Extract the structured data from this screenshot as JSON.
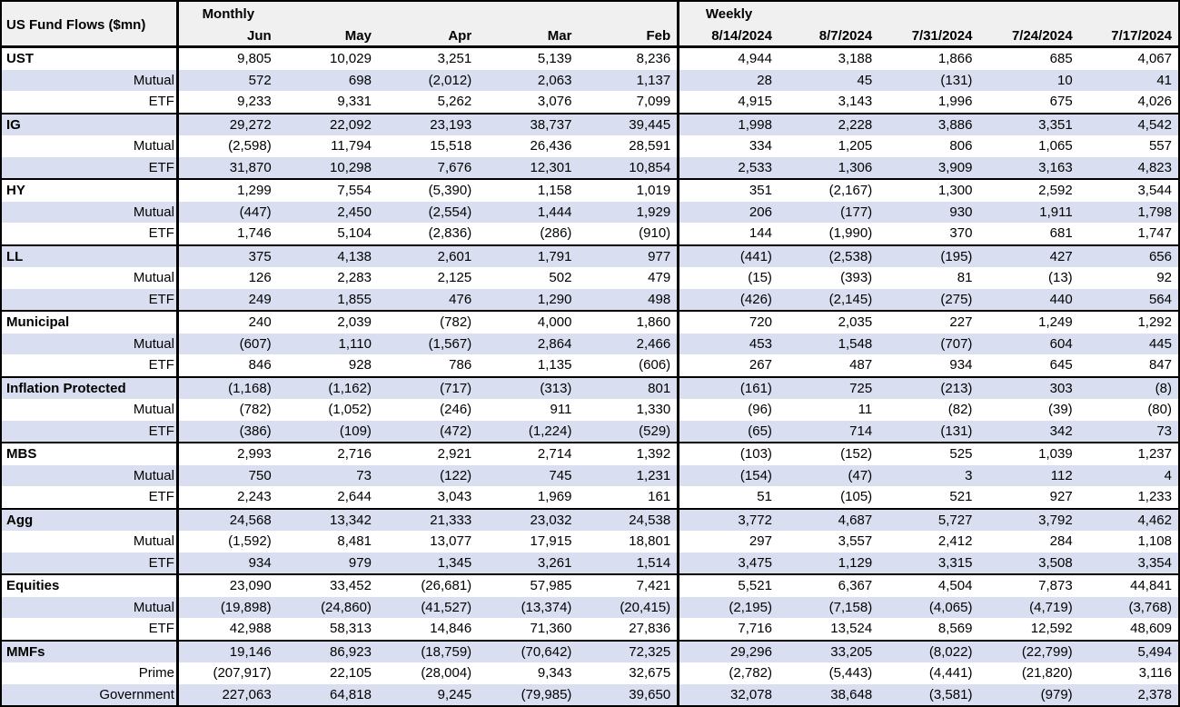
{
  "header": {
    "title": "US Fund Flows ($mn)",
    "monthly_label": "Monthly",
    "weekly_label": "Weekly",
    "monthly_columns": [
      "Jun",
      "May",
      "Apr",
      "Mar",
      "Feb"
    ],
    "weekly_columns": [
      "8/14/2024",
      "8/7/2024",
      "7/31/2024",
      "7/24/2024",
      "7/17/2024"
    ]
  },
  "colors": {
    "stripe": "#d9dff0",
    "header_bg": "#f0f0f0",
    "border": "#000000",
    "text": "#000000"
  },
  "groups": [
    {
      "rows": [
        {
          "label": "UST",
          "type": "category",
          "monthly": [
            "9,805",
            "10,029",
            "3,251",
            "5,139",
            "8,236"
          ],
          "weekly": [
            "4,944",
            "3,188",
            "1,866",
            "685",
            "4,067"
          ]
        },
        {
          "label": "Mutual",
          "type": "sub",
          "monthly": [
            "572",
            "698",
            "(2,012)",
            "2,063",
            "1,137"
          ],
          "weekly": [
            "28",
            "45",
            "(131)",
            "10",
            "41"
          ]
        },
        {
          "label": "ETF",
          "type": "sub",
          "monthly": [
            "9,233",
            "9,331",
            "5,262",
            "3,076",
            "7,099"
          ],
          "weekly": [
            "4,915",
            "3,143",
            "1,996",
            "675",
            "4,026"
          ]
        }
      ]
    },
    {
      "rows": [
        {
          "label": "IG",
          "type": "category",
          "monthly": [
            "29,272",
            "22,092",
            "23,193",
            "38,737",
            "39,445"
          ],
          "weekly": [
            "1,998",
            "2,228",
            "3,886",
            "3,351",
            "4,542"
          ]
        },
        {
          "label": "Mutual",
          "type": "sub",
          "monthly": [
            "(2,598)",
            "11,794",
            "15,518",
            "26,436",
            "28,591"
          ],
          "weekly": [
            "334",
            "1,205",
            "806",
            "1,065",
            "557"
          ]
        },
        {
          "label": "ETF",
          "type": "sub",
          "monthly": [
            "31,870",
            "10,298",
            "7,676",
            "12,301",
            "10,854"
          ],
          "weekly": [
            "2,533",
            "1,306",
            "3,909",
            "3,163",
            "4,823"
          ]
        }
      ]
    },
    {
      "rows": [
        {
          "label": "HY",
          "type": "category",
          "monthly": [
            "1,299",
            "7,554",
            "(5,390)",
            "1,158",
            "1,019"
          ],
          "weekly": [
            "351",
            "(2,167)",
            "1,300",
            "2,592",
            "3,544"
          ]
        },
        {
          "label": "Mutual",
          "type": "sub",
          "monthly": [
            "(447)",
            "2,450",
            "(2,554)",
            "1,444",
            "1,929"
          ],
          "weekly": [
            "206",
            "(177)",
            "930",
            "1,911",
            "1,798"
          ]
        },
        {
          "label": "ETF",
          "type": "sub",
          "monthly": [
            "1,746",
            "5,104",
            "(2,836)",
            "(286)",
            "(910)"
          ],
          "weekly": [
            "144",
            "(1,990)",
            "370",
            "681",
            "1,747"
          ]
        }
      ]
    },
    {
      "rows": [
        {
          "label": "LL",
          "type": "category",
          "monthly": [
            "375",
            "4,138",
            "2,601",
            "1,791",
            "977"
          ],
          "weekly": [
            "(441)",
            "(2,538)",
            "(195)",
            "427",
            "656"
          ]
        },
        {
          "label": "Mutual",
          "type": "sub",
          "monthly": [
            "126",
            "2,283",
            "2,125",
            "502",
            "479"
          ],
          "weekly": [
            "(15)",
            "(393)",
            "81",
            "(13)",
            "92"
          ]
        },
        {
          "label": "ETF",
          "type": "sub",
          "monthly": [
            "249",
            "1,855",
            "476",
            "1,290",
            "498"
          ],
          "weekly": [
            "(426)",
            "(2,145)",
            "(275)",
            "440",
            "564"
          ]
        }
      ]
    },
    {
      "rows": [
        {
          "label": "Municipal",
          "type": "category",
          "monthly": [
            "240",
            "2,039",
            "(782)",
            "4,000",
            "1,860"
          ],
          "weekly": [
            "720",
            "2,035",
            "227",
            "1,249",
            "1,292"
          ]
        },
        {
          "label": "Mutual",
          "type": "sub",
          "monthly": [
            "(607)",
            "1,110",
            "(1,567)",
            "2,864",
            "2,466"
          ],
          "weekly": [
            "453",
            "1,548",
            "(707)",
            "604",
            "445"
          ]
        },
        {
          "label": "ETF",
          "type": "sub",
          "monthly": [
            "846",
            "928",
            "786",
            "1,135",
            "(606)"
          ],
          "weekly": [
            "267",
            "487",
            "934",
            "645",
            "847"
          ]
        }
      ]
    },
    {
      "rows": [
        {
          "label": "Inflation Protected",
          "type": "category",
          "monthly": [
            "(1,168)",
            "(1,162)",
            "(717)",
            "(313)",
            "801"
          ],
          "weekly": [
            "(161)",
            "725",
            "(213)",
            "303",
            "(8)"
          ]
        },
        {
          "label": "Mutual",
          "type": "sub",
          "monthly": [
            "(782)",
            "(1,052)",
            "(246)",
            "911",
            "1,330"
          ],
          "weekly": [
            "(96)",
            "11",
            "(82)",
            "(39)",
            "(80)"
          ]
        },
        {
          "label": "ETF",
          "type": "sub",
          "monthly": [
            "(386)",
            "(109)",
            "(472)",
            "(1,224)",
            "(529)"
          ],
          "weekly": [
            "(65)",
            "714",
            "(131)",
            "342",
            "73"
          ]
        }
      ]
    },
    {
      "rows": [
        {
          "label": "MBS",
          "type": "category",
          "monthly": [
            "2,993",
            "2,716",
            "2,921",
            "2,714",
            "1,392"
          ],
          "weekly": [
            "(103)",
            "(152)",
            "525",
            "1,039",
            "1,237"
          ]
        },
        {
          "label": "Mutual",
          "type": "sub",
          "monthly": [
            "750",
            "73",
            "(122)",
            "745",
            "1,231"
          ],
          "weekly": [
            "(154)",
            "(47)",
            "3",
            "112",
            "4"
          ]
        },
        {
          "label": "ETF",
          "type": "sub",
          "monthly": [
            "2,243",
            "2,644",
            "3,043",
            "1,969",
            "161"
          ],
          "weekly": [
            "51",
            "(105)",
            "521",
            "927",
            "1,233"
          ]
        }
      ]
    },
    {
      "rows": [
        {
          "label": "Agg",
          "type": "category",
          "monthly": [
            "24,568",
            "13,342",
            "21,333",
            "23,032",
            "24,538"
          ],
          "weekly": [
            "3,772",
            "4,687",
            "5,727",
            "3,792",
            "4,462"
          ]
        },
        {
          "label": "Mutual",
          "type": "sub",
          "monthly": [
            "(1,592)",
            "8,481",
            "13,077",
            "17,915",
            "18,801"
          ],
          "weekly": [
            "297",
            "3,557",
            "2,412",
            "284",
            "1,108"
          ]
        },
        {
          "label": "ETF",
          "type": "sub",
          "monthly": [
            "934",
            "979",
            "1,345",
            "3,261",
            "1,514"
          ],
          "weekly": [
            "3,475",
            "1,129",
            "3,315",
            "3,508",
            "3,354"
          ]
        }
      ]
    },
    {
      "rows": [
        {
          "label": "Equities",
          "type": "category",
          "monthly": [
            "23,090",
            "33,452",
            "(26,681)",
            "57,985",
            "7,421"
          ],
          "weekly": [
            "5,521",
            "6,367",
            "4,504",
            "7,873",
            "44,841"
          ]
        },
        {
          "label": "Mutual",
          "type": "sub",
          "monthly": [
            "(19,898)",
            "(24,860)",
            "(41,527)",
            "(13,374)",
            "(20,415)"
          ],
          "weekly": [
            "(2,195)",
            "(7,158)",
            "(4,065)",
            "(4,719)",
            "(3,768)"
          ]
        },
        {
          "label": "ETF",
          "type": "sub",
          "monthly": [
            "42,988",
            "58,313",
            "14,846",
            "71,360",
            "27,836"
          ],
          "weekly": [
            "7,716",
            "13,524",
            "8,569",
            "12,592",
            "48,609"
          ]
        }
      ]
    },
    {
      "rows": [
        {
          "label": "MMFs",
          "type": "category",
          "monthly": [
            "19,146",
            "86,923",
            "(18,759)",
            "(70,642)",
            "72,325"
          ],
          "weekly": [
            "29,296",
            "33,205",
            "(8,022)",
            "(22,799)",
            "5,494"
          ]
        },
        {
          "label": "Prime",
          "type": "sub",
          "monthly": [
            "(207,917)",
            "22,105",
            "(28,004)",
            "9,343",
            "32,675"
          ],
          "weekly": [
            "(2,782)",
            "(5,443)",
            "(4,441)",
            "(21,820)",
            "3,116"
          ]
        },
        {
          "label": "Government",
          "type": "sub",
          "monthly": [
            "227,063",
            "64,818",
            "9,245",
            "(79,985)",
            "39,650"
          ],
          "weekly": [
            "32,078",
            "38,648",
            "(3,581)",
            "(979)",
            "2,378"
          ]
        }
      ]
    }
  ]
}
